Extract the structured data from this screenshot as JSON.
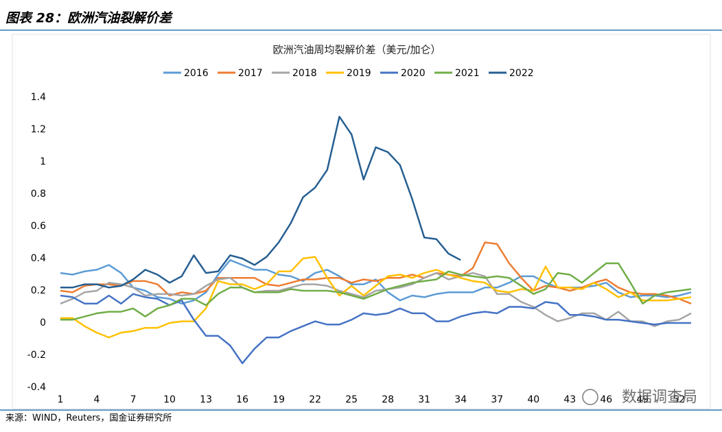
{
  "header": {
    "title": "图表 28：欧洲汽油裂解价差"
  },
  "source": "来源：WIND，Reuters，国金证券研究所",
  "chart_data": {
    "type": "line",
    "title": "欧洲汽油周均裂解价差（美元/加仑）",
    "watermark": "数据调查局",
    "x": [
      1,
      2,
      3,
      4,
      5,
      6,
      7,
      8,
      9,
      10,
      11,
      12,
      13,
      14,
      15,
      16,
      17,
      18,
      19,
      20,
      21,
      22,
      23,
      24,
      25,
      26,
      27,
      28,
      29,
      30,
      31,
      32,
      33,
      34,
      35,
      36,
      37,
      38,
      39,
      40,
      41,
      42,
      43,
      44,
      45,
      46,
      47,
      48,
      49,
      50,
      51,
      52,
      53
    ],
    "xlim": [
      1,
      53
    ],
    "xticks": [
      1,
      4,
      7,
      10,
      13,
      16,
      19,
      22,
      25,
      28,
      31,
      34,
      37,
      40,
      43,
      46,
      49,
      52
    ],
    "ylim": [
      -0.4,
      1.4
    ],
    "yticks": [
      1.4,
      1.2,
      1,
      0.8,
      0.6,
      0.4,
      0.2,
      0,
      -0.2,
      -0.4
    ],
    "grid": false,
    "legend": "top",
    "series": [
      {
        "name": "2016",
        "color": "#5b9bd5",
        "values": [
          0.31,
          0.3,
          0.32,
          0.33,
          0.36,
          0.31,
          0.22,
          0.2,
          0.16,
          0.15,
          0.12,
          0.14,
          0.19,
          0.3,
          0.39,
          0.36,
          0.33,
          0.33,
          0.3,
          0.29,
          0.26,
          0.31,
          0.33,
          0.29,
          0.24,
          0.24,
          0.27,
          0.19,
          0.14,
          0.17,
          0.16,
          0.18,
          0.19,
          0.19,
          0.19,
          0.22,
          0.22,
          0.25,
          0.29,
          0.29,
          0.25,
          0.22,
          0.22,
          0.22,
          0.23,
          0.25,
          0.19,
          0.16,
          0.17,
          0.17,
          0.16,
          0.17,
          0.19
        ]
      },
      {
        "name": "2017",
        "color": "#ed7d31",
        "values": [
          0.2,
          0.19,
          0.23,
          0.24,
          0.24,
          0.23,
          0.26,
          0.26,
          0.24,
          0.17,
          0.19,
          0.18,
          0.2,
          0.28,
          0.28,
          0.28,
          0.28,
          0.24,
          0.23,
          0.25,
          0.27,
          0.27,
          0.28,
          0.28,
          0.25,
          0.27,
          0.26,
          0.28,
          0.28,
          0.3,
          0.28,
          0.31,
          0.3,
          0.29,
          0.34,
          0.5,
          0.49,
          0.37,
          0.28,
          0.2,
          0.23,
          0.22,
          0.2,
          0.22,
          0.25,
          0.27,
          0.22,
          0.19,
          0.18,
          0.18,
          0.17,
          0.15,
          0.12
        ]
      },
      {
        "name": "2018",
        "color": "#a5a5a5",
        "values": [
          0.12,
          0.15,
          0.19,
          0.2,
          0.25,
          0.24,
          0.22,
          0.17,
          0.18,
          0.18,
          0.17,
          0.18,
          0.23,
          0.27,
          0.28,
          0.22,
          0.19,
          0.2,
          0.2,
          0.22,
          0.24,
          0.24,
          0.23,
          0.2,
          0.18,
          0.16,
          0.2,
          0.21,
          0.22,
          0.24,
          0.28,
          0.31,
          0.27,
          0.29,
          0.31,
          0.29,
          0.18,
          0.18,
          0.13,
          0.1,
          0.05,
          0.01,
          0.03,
          0.06,
          0.06,
          0.02,
          0.07,
          0.01,
          0.01,
          -0.02,
          0.01,
          0.02,
          0.06
        ]
      },
      {
        "name": "2019",
        "color": "#ffc000",
        "values": [
          0.03,
          0.03,
          -0.02,
          -0.06,
          -0.09,
          -0.06,
          -0.05,
          -0.03,
          -0.03,
          0.0,
          0.01,
          0.01,
          0.09,
          0.26,
          0.24,
          0.24,
          0.21,
          0.24,
          0.32,
          0.32,
          0.4,
          0.41,
          0.28,
          0.17,
          0.23,
          0.17,
          0.23,
          0.29,
          0.3,
          0.28,
          0.31,
          0.33,
          0.3,
          0.28,
          0.26,
          0.25,
          0.2,
          0.19,
          0.21,
          0.2,
          0.35,
          0.22,
          0.22,
          0.21,
          0.25,
          0.21,
          0.16,
          0.19,
          0.14,
          0.14,
          0.14,
          0.15,
          0.16
        ]
      },
      {
        "name": "2020",
        "color": "#4472c4",
        "values": [
          0.17,
          0.16,
          0.12,
          0.12,
          0.17,
          0.12,
          0.18,
          0.16,
          0.15,
          0.11,
          0.14,
          0.02,
          -0.08,
          -0.08,
          -0.14,
          -0.25,
          -0.16,
          -0.09,
          -0.09,
          -0.05,
          -0.02,
          0.01,
          -0.01,
          -0.01,
          0.02,
          0.06,
          0.05,
          0.06,
          0.09,
          0.06,
          0.06,
          0.01,
          0.01,
          0.04,
          0.06,
          0.07,
          0.06,
          0.1,
          0.1,
          0.09,
          0.13,
          0.12,
          0.05,
          0.05,
          0.04,
          0.02,
          0.02,
          0.01,
          0.0,
          -0.01,
          0.0,
          0.0,
          0.0
        ]
      },
      {
        "name": "2021",
        "color": "#70ad47",
        "values": [
          0.02,
          0.02,
          0.04,
          0.06,
          0.07,
          0.07,
          0.09,
          0.04,
          0.09,
          0.11,
          0.15,
          0.15,
          0.11,
          0.18,
          0.22,
          0.22,
          0.19,
          0.19,
          0.19,
          0.21,
          0.2,
          0.2,
          0.2,
          0.19,
          0.17,
          0.15,
          0.18,
          0.21,
          0.23,
          0.25,
          0.26,
          0.27,
          0.32,
          0.3,
          0.29,
          0.28,
          0.29,
          0.28,
          0.23,
          0.18,
          0.21,
          0.31,
          0.3,
          0.25,
          0.31,
          0.37,
          0.37,
          0.25,
          0.12,
          0.17,
          0.19,
          0.2,
          0.21
        ]
      },
      {
        "name": "2022",
        "color": "#255e91",
        "values": [
          0.22,
          0.22,
          0.24,
          0.24,
          0.22,
          0.23,
          0.27,
          0.33,
          0.3,
          0.25,
          0.29,
          0.42,
          0.31,
          0.32,
          0.42,
          0.4,
          0.36,
          0.41,
          0.5,
          0.62,
          0.78,
          0.84,
          0.95,
          1.28,
          1.17,
          0.89,
          1.09,
          1.06,
          0.98,
          0.77,
          0.53,
          0.52,
          0.43,
          0.39,
          null,
          null,
          null,
          null,
          null,
          null,
          null,
          null,
          null,
          null,
          null,
          null,
          null,
          null,
          null,
          null,
          null,
          null,
          null
        ]
      }
    ]
  }
}
